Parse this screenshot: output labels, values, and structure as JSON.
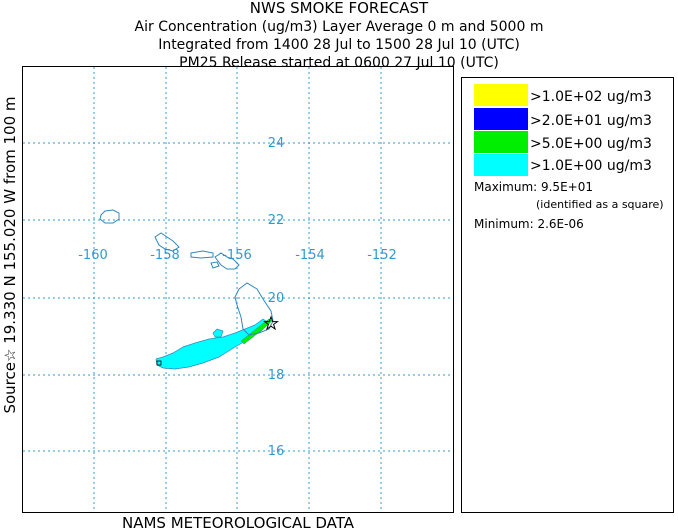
{
  "title": {
    "line1": "NWS SMOKE FORECAST",
    "line2": "Air Concentration (ug/m3) Layer Average    0 m and  5000 m",
    "line3": "Integrated from 1400 28 Jul to 1500 28 Jul 10 (UTC)",
    "line4": "PM25 Release started at 0600 27 Jul 10 (UTC)"
  },
  "side_label": "Source☆ 19.330  N 155.020  W     from   100 m",
  "footer": "NAMS METEOROLOGICAL DATA",
  "map": {
    "lon_labels": [
      "-160",
      "-158",
      "-156",
      "-154",
      "-152"
    ],
    "lat_labels": [
      "24",
      "22",
      "20",
      "18",
      "16"
    ],
    "grid_color": "#3399cc",
    "coast_color": "#3388bb"
  },
  "legend": {
    "items": [
      {
        "label": ">1.0E+02 ug/m3",
        "color": "#ffff00"
      },
      {
        "label": ">2.0E+01 ug/m3",
        "color": "#0000ff"
      },
      {
        "label": ">5.0E+00 ug/m3",
        "color": "#00ee00"
      },
      {
        "label": ">1.0E+00 ug/m3",
        "color": "#00ffff"
      }
    ],
    "maximum_label": "Maximum: 9.5E+01",
    "maximum_note": "(identified as a square)",
    "minimum_label": "Minimum: 2.6E-06"
  }
}
